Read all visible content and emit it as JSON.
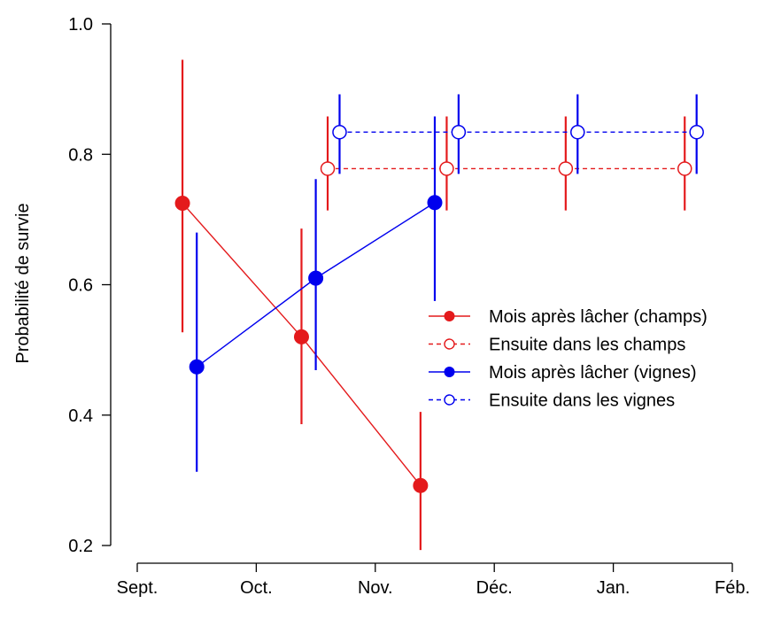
{
  "chart_data": {
    "type": "scatter",
    "ylabel": "Probabilité de survie",
    "xlabel": "",
    "ylim": [
      0.2,
      1.0
    ],
    "yticks": [
      "0.2",
      "0.4",
      "0.6",
      "0.8",
      "1.0"
    ],
    "xticks": [
      "Sept.",
      "Oct.",
      "Nov.",
      "Déc.",
      "Jan.",
      "Féb."
    ],
    "grid": false,
    "legend_position": "right",
    "colors": {
      "champs": "#e41a1c",
      "vignes": "#0000ee"
    },
    "series": [
      {
        "name": "Mois après lâcher (champs)",
        "group": "champs",
        "marker": "filled",
        "linestyle": "solid",
        "x": [
          0.38,
          1.38,
          2.38
        ],
        "y": [
          0.725,
          0.52,
          0.292
        ],
        "lower": [
          0.527,
          0.386,
          0.193
        ],
        "upper": [
          0.945,
          0.686,
          0.405
        ]
      },
      {
        "name": "Ensuite dans les champs",
        "group": "champs",
        "marker": "open",
        "linestyle": "dashed",
        "x": [
          1.6,
          2.6,
          3.6,
          4.6
        ],
        "y": [
          0.778,
          0.778,
          0.778,
          0.778
        ],
        "lower": [
          0.714,
          0.714,
          0.714,
          0.714
        ],
        "upper": [
          0.858,
          0.858,
          0.858,
          0.858
        ]
      },
      {
        "name": "Mois après lâcher (vignes)",
        "group": "vignes",
        "marker": "filled",
        "linestyle": "solid",
        "x": [
          0.5,
          1.5,
          2.5
        ],
        "y": [
          0.474,
          0.61,
          0.726
        ],
        "lower": [
          0.313,
          0.469,
          0.575
        ],
        "upper": [
          0.68,
          0.762,
          0.858
        ]
      },
      {
        "name": "Ensuite dans les vignes",
        "group": "vignes",
        "marker": "open",
        "linestyle": "dashed",
        "x": [
          1.7,
          2.7,
          3.7,
          4.7
        ],
        "y": [
          0.834,
          0.834,
          0.834,
          0.834
        ],
        "lower": [
          0.77,
          0.77,
          0.77,
          0.77
        ],
        "upper": [
          0.892,
          0.892,
          0.892,
          0.892
        ]
      }
    ]
  }
}
